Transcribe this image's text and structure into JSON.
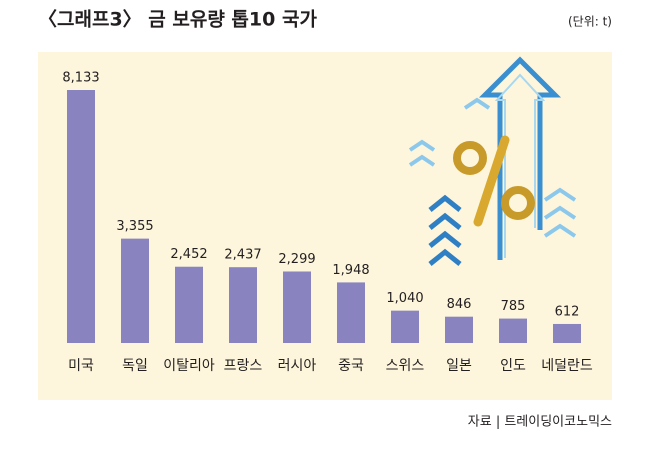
{
  "chart_data": {
    "type": "bar",
    "title": "〈그래프3〉 금 보유량 톱10 국가",
    "unit": "(단위: t)",
    "source": "자료 | 트레이딩이코노믹스",
    "categories": [
      "미국",
      "독일",
      "이탈리아",
      "프랑스",
      "러시아",
      "중국",
      "스위스",
      "일본",
      "인도",
      "네덜란드"
    ],
    "values": [
      8133,
      3355,
      2452,
      2437,
      2299,
      1948,
      1040,
      846,
      785,
      612
    ],
    "value_labels": [
      "8,133",
      "3,355",
      "2,452",
      "2,437",
      "2,299",
      "1,948",
      "1,040",
      "846",
      "785",
      "612"
    ],
    "color": "#8984c0"
  }
}
